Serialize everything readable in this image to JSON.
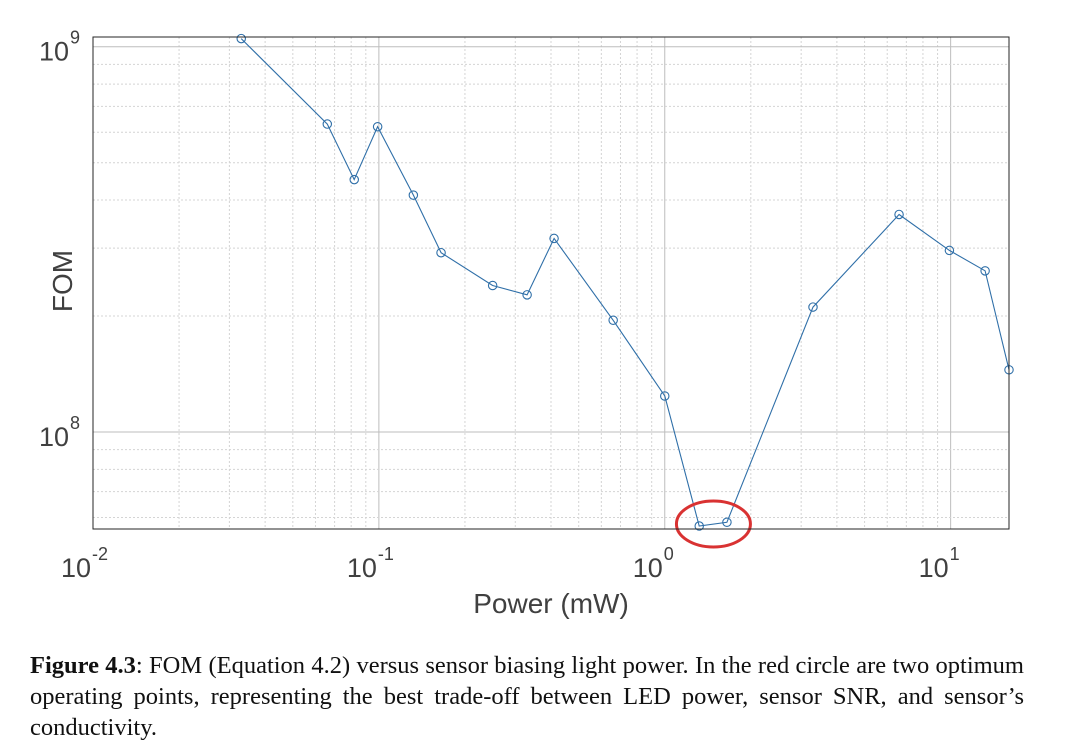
{
  "chart_data": {
    "type": "line",
    "xlabel": "Power (mW)",
    "ylabel": "FOM",
    "x_scale": "log",
    "y_scale": "log",
    "xlim": [
      0.01,
      16
    ],
    "ylim": [
      56000000,
      1060000000
    ],
    "x_tick_labels": [
      {
        "base": "10",
        "exp": "-2",
        "value": 0.01
      },
      {
        "base": "10",
        "exp": "-1",
        "value": 0.1
      },
      {
        "base": "10",
        "exp": "0",
        "value": 1
      },
      {
        "base": "10",
        "exp": "1",
        "value": 10
      }
    ],
    "y_tick_labels": [
      {
        "base": "10",
        "exp": "8",
        "value": 100000000
      },
      {
        "base": "10",
        "exp": "9",
        "value": 1000000000
      }
    ],
    "grid": true,
    "minor_grid": true,
    "series": [
      {
        "color": "#2f6fa8",
        "marker": "circle",
        "points": [
          {
            "x": 0.033,
            "y": 1050000000
          },
          {
            "x": 0.066,
            "y": 630000000
          },
          {
            "x": 0.082,
            "y": 452000000
          },
          {
            "x": 0.099,
            "y": 620000000
          },
          {
            "x": 0.132,
            "y": 412000000
          },
          {
            "x": 0.165,
            "y": 292000000
          },
          {
            "x": 0.25,
            "y": 240000000
          },
          {
            "x": 0.33,
            "y": 227000000
          },
          {
            "x": 0.41,
            "y": 318000000
          },
          {
            "x": 0.66,
            "y": 195000000
          },
          {
            "x": 1.0,
            "y": 124000000
          },
          {
            "x": 1.32,
            "y": 57000000
          },
          {
            "x": 1.65,
            "y": 58300000
          },
          {
            "x": 3.3,
            "y": 211000000
          },
          {
            "x": 6.6,
            "y": 367000000
          },
          {
            "x": 9.9,
            "y": 296000000
          },
          {
            "x": 13.2,
            "y": 262000000
          },
          {
            "x": 16.0,
            "y": 145000000
          }
        ]
      }
    ],
    "annotation": {
      "type": "ellipse",
      "color": "#d93232",
      "center": {
        "x": 1.48,
        "y": 57700000
      }
    }
  },
  "caption": {
    "label": "Figure 4.3",
    "text": ": FOM (Equation 4.2) versus sensor biasing light power. In the red circle are two optimum operating points, representing the best trade-off between LED power, sensor SNR, and sensor’s conductivity."
  }
}
